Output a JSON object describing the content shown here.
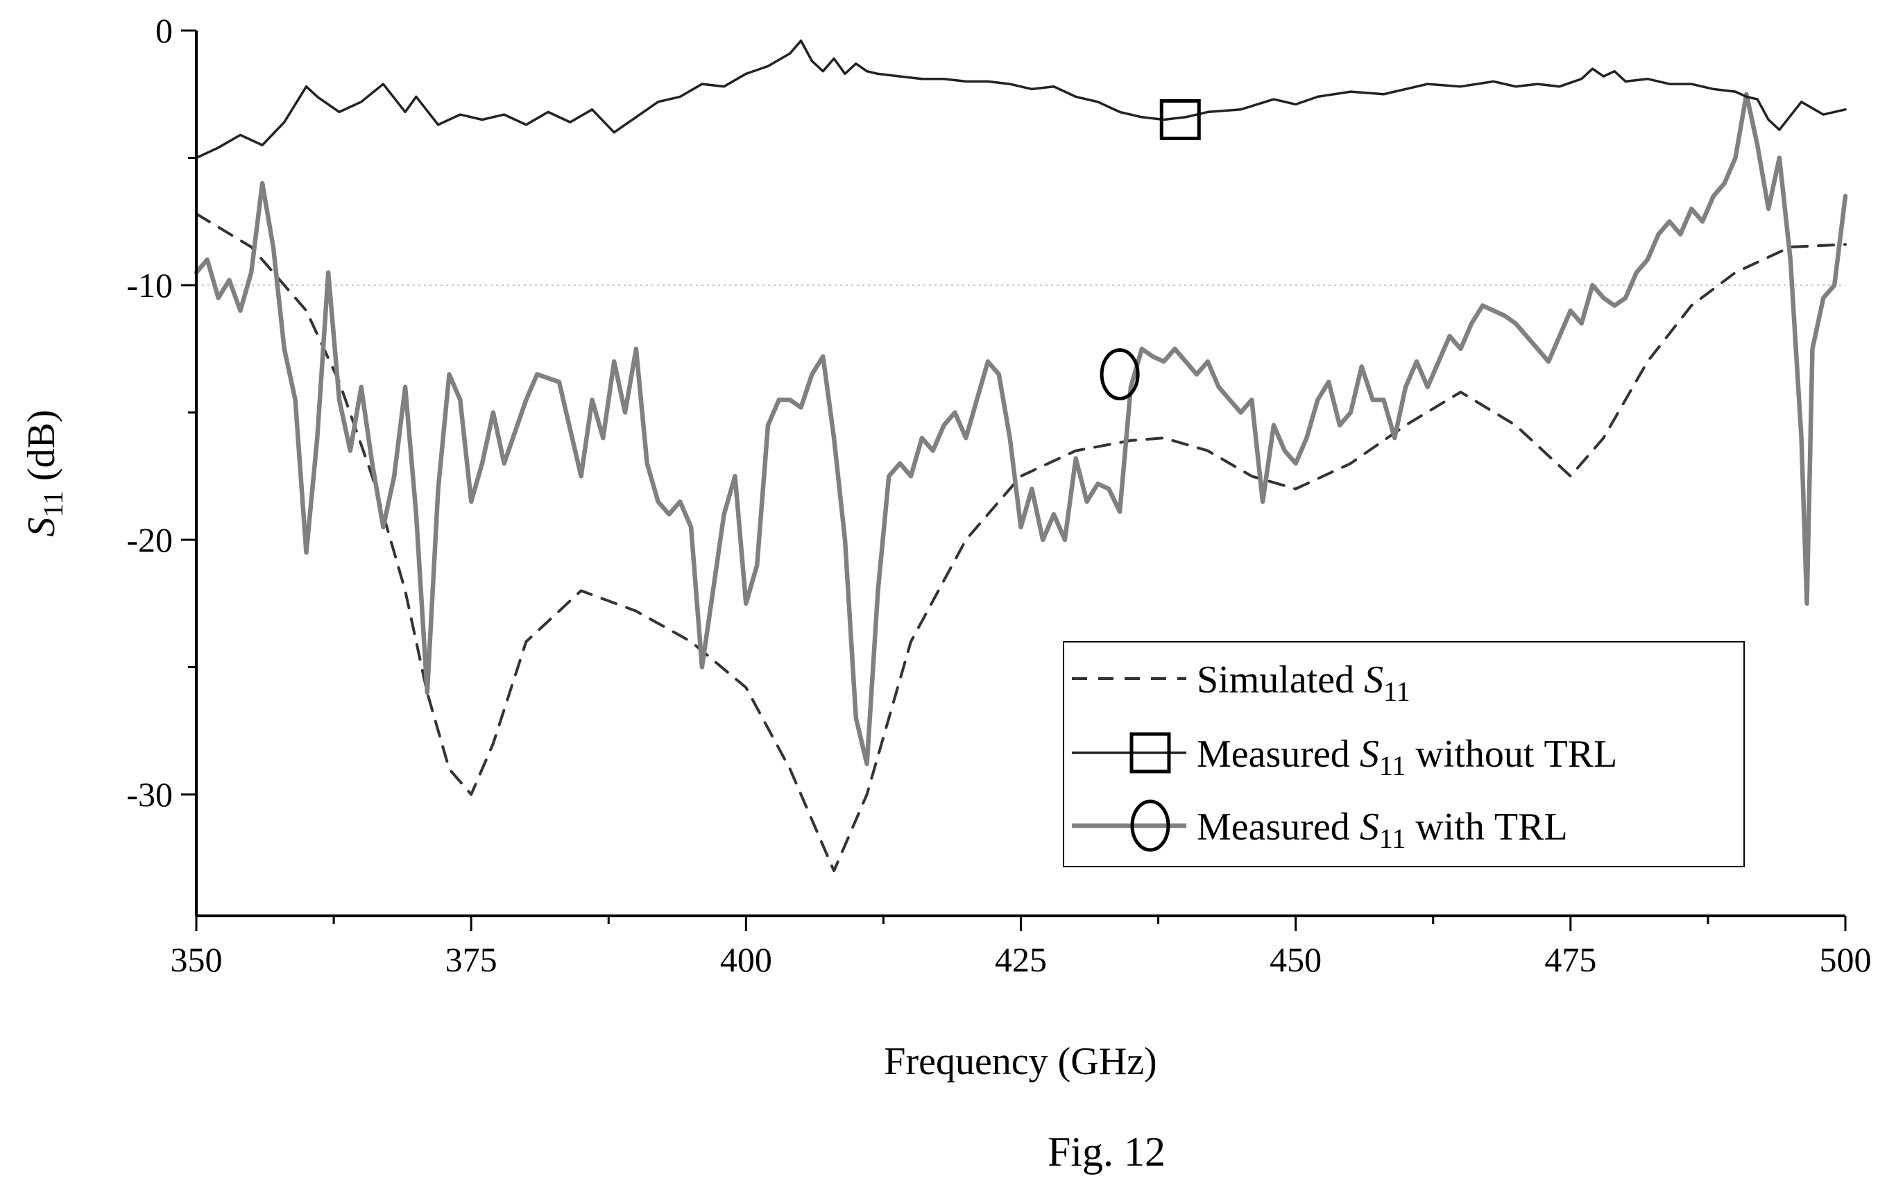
{
  "chart_data": {
    "type": "line",
    "xlabel": "Frequency (GHz)",
    "ylabel": {
      "symbol": "S",
      "subscript": "11",
      "unit": " (dB)"
    },
    "xlim": [
      350,
      500
    ],
    "ylim": [
      -35,
      0
    ],
    "xticks": [
      350,
      375,
      400,
      425,
      450,
      475,
      500
    ],
    "xtick_labels": [
      "350",
      "375",
      "400",
      "425",
      "450",
      "475",
      "500"
    ],
    "yticks": [
      0,
      -10,
      -20,
      -30
    ],
    "ytick_labels": [
      "0",
      "-10",
      "-20",
      "-30"
    ],
    "gridlines_y": [
      -10
    ],
    "legend_position": "bottom-right",
    "caption": "Fig. 12",
    "series": [
      {
        "name_parts": {
          "prefix": "Simulated ",
          "symbol": "S",
          "subscript": "11",
          "suffix": ""
        },
        "style": "dashed",
        "color": "#333333",
        "marker": "none",
        "x": [
          350,
          355,
          360,
          363,
          366,
          369,
          371,
          373,
          375,
          377,
          380,
          385,
          390,
          395,
          400,
          404,
          408,
          411,
          415,
          420,
          425,
          430,
          435,
          438,
          442,
          446,
          450,
          455,
          460,
          465,
          470,
          475,
          478,
          482,
          486,
          490,
          495,
          500
        ],
        "y": [
          -7.2,
          -8.5,
          -11,
          -13.8,
          -17.5,
          -22,
          -26,
          -29,
          -30,
          -28,
          -24,
          -22,
          -22.8,
          -24,
          -25.8,
          -29,
          -33,
          -30,
          -24,
          -20,
          -17.5,
          -16.5,
          -16.1,
          -16,
          -16.5,
          -17.5,
          -18,
          -17,
          -15.5,
          -14.2,
          -15.5,
          -17.5,
          -16,
          -13,
          -10.8,
          -9.5,
          -8.5,
          -8.4
        ]
      },
      {
        "name_parts": {
          "prefix": "Measured ",
          "symbol": "S",
          "subscript": "11",
          "suffix": " without TRL"
        },
        "style": "solid",
        "color": "#222222",
        "marker": "square",
        "marker_x": 439.5,
        "marker_y": -3.5,
        "x": [
          350,
          352,
          354,
          356,
          358,
          360,
          361,
          363,
          365,
          367,
          369,
          370,
          372,
          374,
          376,
          378,
          380,
          382,
          384,
          386,
          388,
          390,
          392,
          394,
          396,
          398,
          400,
          402,
          404,
          405,
          406,
          407,
          408,
          409,
          410,
          411,
          412,
          414,
          416,
          418,
          420,
          422,
          424,
          426,
          428,
          430,
          432,
          434,
          436,
          438,
          440,
          442,
          445,
          448,
          450,
          452,
          455,
          458,
          460,
          462,
          465,
          468,
          470,
          472,
          474,
          476,
          477,
          478,
          479,
          480,
          482,
          484,
          486,
          488,
          490,
          491,
          492,
          493,
          494,
          496,
          498,
          500
        ],
        "y": [
          -5,
          -4.6,
          -4.1,
          -4.5,
          -3.6,
          -2.2,
          -2.6,
          -3.2,
          -2.8,
          -2.1,
          -3.2,
          -2.6,
          -3.7,
          -3.3,
          -3.5,
          -3.3,
          -3.7,
          -3.2,
          -3.6,
          -3.1,
          -4.0,
          -3.4,
          -2.8,
          -2.6,
          -2.1,
          -2.2,
          -1.7,
          -1.4,
          -0.9,
          -0.4,
          -1.2,
          -1.6,
          -1.1,
          -1.7,
          -1.3,
          -1.6,
          -1.7,
          -1.8,
          -1.9,
          -1.9,
          -2.0,
          -2.0,
          -2.1,
          -2.3,
          -2.2,
          -2.6,
          -2.8,
          -3.2,
          -3.4,
          -3.5,
          -3.4,
          -3.2,
          -3.1,
          -2.7,
          -2.9,
          -2.6,
          -2.4,
          -2.5,
          -2.3,
          -2.1,
          -2.2,
          -2.0,
          -2.2,
          -2.1,
          -2.2,
          -1.9,
          -1.5,
          -1.8,
          -1.6,
          -2.0,
          -1.9,
          -2.1,
          -2.1,
          -2.3,
          -2.4,
          -2.6,
          -2.7,
          -3.5,
          -3.9,
          -2.8,
          -3.3,
          -3.1
        ]
      },
      {
        "name_parts": {
          "prefix": "Measured ",
          "symbol": "S",
          "subscript": "11",
          "suffix": " with TRL"
        },
        "style": "solid",
        "color": "#808080",
        "marker": "circle",
        "marker_x": 434,
        "marker_y": -13.5,
        "x": [
          350,
          351,
          352,
          353,
          354,
          355,
          356,
          357,
          358,
          359,
          360,
          361,
          362,
          363,
          364,
          365,
          366,
          367,
          368,
          369,
          370,
          371,
          372,
          373,
          374,
          375,
          376,
          377,
          378,
          380,
          381,
          383,
          385,
          386,
          387,
          388,
          389,
          390,
          391,
          392,
          393,
          394,
          395,
          396,
          397,
          398,
          399,
          400,
          401,
          402,
          403,
          404,
          405,
          406,
          407,
          408,
          409,
          410,
          411,
          412,
          413,
          414,
          415,
          416,
          417,
          418,
          419,
          420,
          421,
          422,
          423,
          424,
          425,
          426,
          427,
          428,
          429,
          430,
          431,
          432,
          433,
          434,
          435,
          436,
          437,
          438,
          439,
          440,
          441,
          442,
          443,
          444,
          445,
          446,
          447,
          448,
          449,
          450,
          451,
          452,
          453,
          454,
          455,
          456,
          457,
          458,
          459,
          460,
          461,
          462,
          463,
          464,
          465,
          466,
          467,
          468,
          469,
          470,
          471,
          472,
          473,
          474,
          475,
          476,
          477,
          478,
          479,
          480,
          481,
          482,
          483,
          484,
          485,
          486,
          487,
          488,
          489,
          490,
          491,
          492,
          493,
          494,
          495,
          496,
          496.5,
          497,
          498,
          499,
          500
        ],
        "y": [
          -9.5,
          -9.0,
          -10.5,
          -9.8,
          -11.0,
          -9.5,
          -6.0,
          -8.5,
          -12.5,
          -14.5,
          -20.5,
          -16.0,
          -9.5,
          -14.5,
          -16.5,
          -14.0,
          -17.0,
          -19.5,
          -17.5,
          -14.0,
          -19.0,
          -26.0,
          -18.0,
          -13.5,
          -14.5,
          -18.5,
          -17.0,
          -15.0,
          -17.0,
          -14.5,
          -13.5,
          -13.8,
          -17.5,
          -14.5,
          -16.0,
          -13.0,
          -15.0,
          -12.5,
          -17.0,
          -18.5,
          -19.0,
          -18.5,
          -19.5,
          -25.0,
          -22.0,
          -19.0,
          -17.5,
          -22.5,
          -21.0,
          -15.5,
          -14.5,
          -14.5,
          -14.8,
          -13.5,
          -12.8,
          -16.0,
          -20.0,
          -27.0,
          -28.8,
          -22.0,
          -17.5,
          -17.0,
          -17.5,
          -16.0,
          -16.5,
          -15.5,
          -15.0,
          -16.0,
          -14.5,
          -13.0,
          -13.5,
          -16.0,
          -19.5,
          -18.0,
          -20.0,
          -19.0,
          -20.0,
          -16.8,
          -18.5,
          -17.8,
          -18.0,
          -18.9,
          -14.0,
          -12.5,
          -12.8,
          -13.0,
          -12.5,
          -13.0,
          -13.5,
          -13.0,
          -14.0,
          -14.5,
          -15.0,
          -14.5,
          -18.5,
          -15.5,
          -16.5,
          -17.0,
          -16.0,
          -14.5,
          -13.8,
          -15.5,
          -15.0,
          -13.2,
          -14.5,
          -14.5,
          -16.0,
          -14.0,
          -13.0,
          -14.0,
          -13.0,
          -12.0,
          -12.5,
          -11.5,
          -10.8,
          -11.0,
          -11.2,
          -11.5,
          -12.0,
          -12.5,
          -13.0,
          -12.0,
          -11.0,
          -11.5,
          -10.0,
          -10.5,
          -10.8,
          -10.5,
          -9.5,
          -9.0,
          -8.0,
          -7.5,
          -8.0,
          -7.0,
          -7.5,
          -6.5,
          -6.0,
          -5.0,
          -2.5,
          -4.5,
          -7.0,
          -5.0,
          -9.0,
          -16.0,
          -22.5,
          -12.5,
          -10.5,
          -10.0,
          -6.5
        ]
      }
    ]
  }
}
